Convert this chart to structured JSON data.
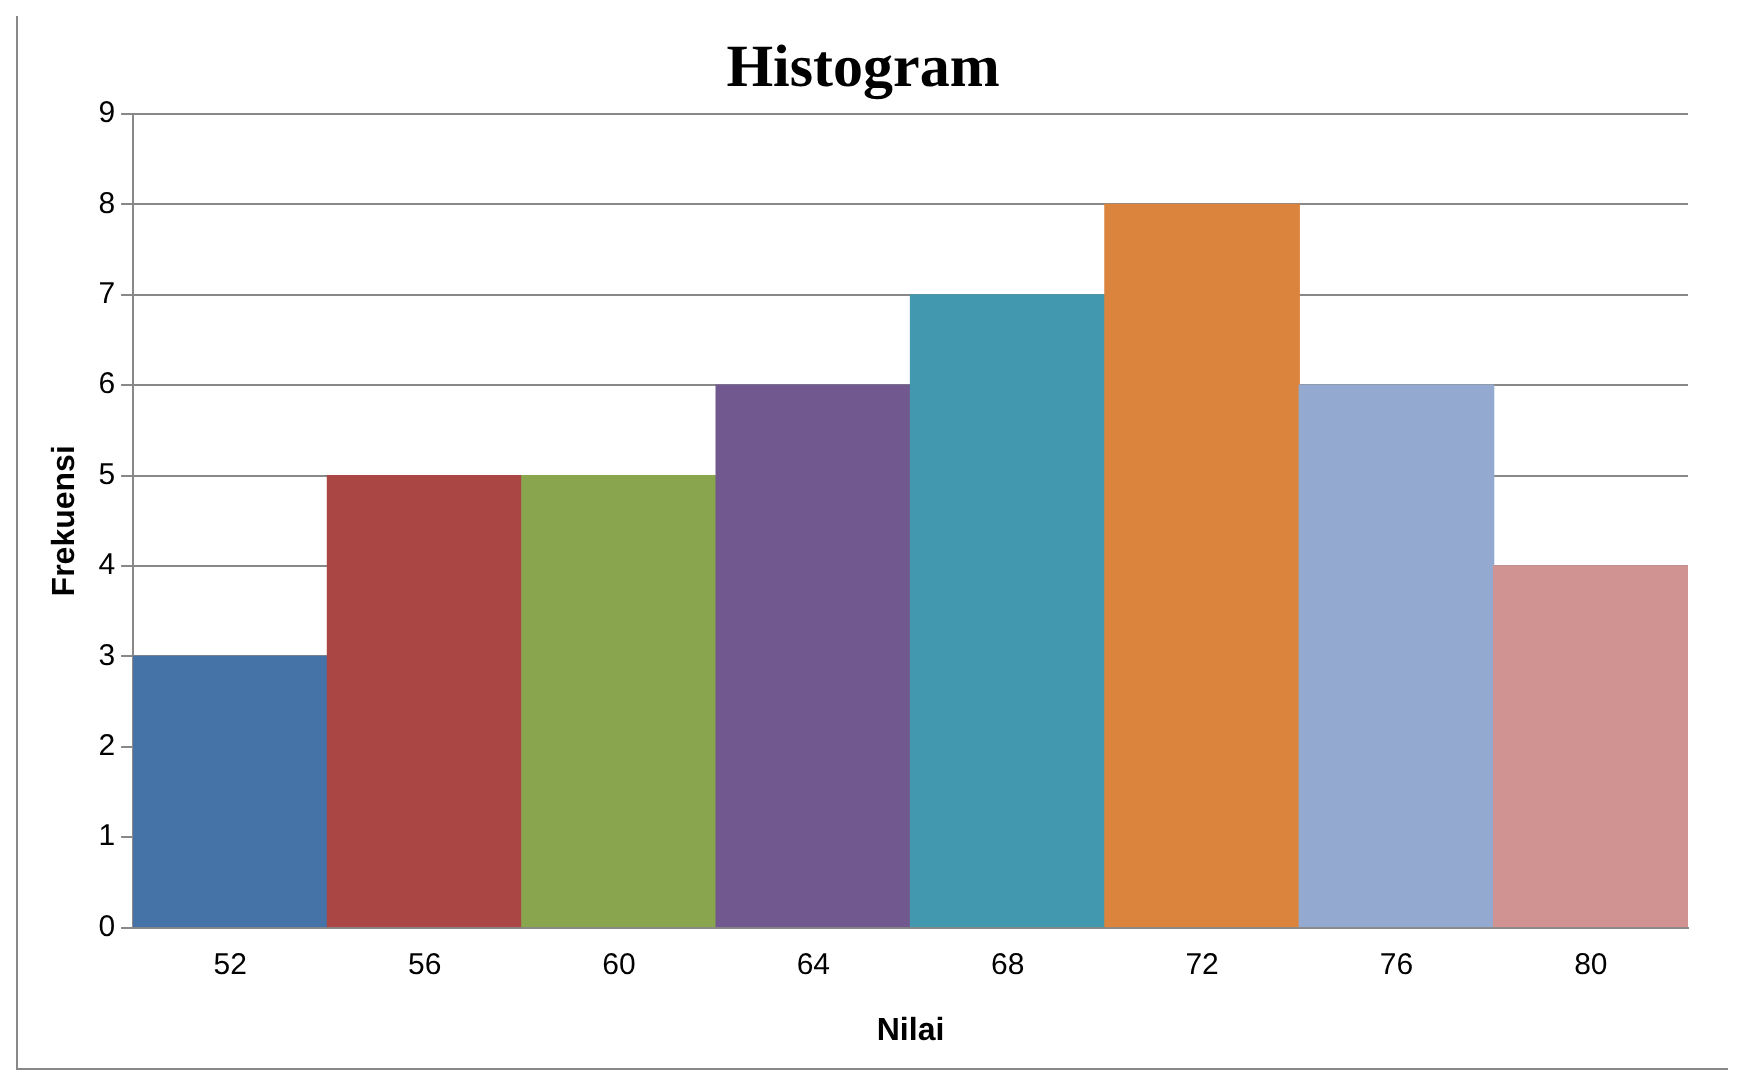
{
  "chart_data": {
    "type": "bar",
    "title": "Histogram",
    "xlabel": "Nilai",
    "ylabel": "Frekuensi",
    "categories": [
      "52",
      "56",
      "60",
      "64",
      "68",
      "72",
      "76",
      "80"
    ],
    "values": [
      3,
      5,
      5,
      6,
      7,
      8,
      6,
      4
    ],
    "colors": [
      "#4572a7",
      "#aa4643",
      "#89a54e",
      "#71588f",
      "#4198af",
      "#db843d",
      "#93a9cf",
      "#d19392"
    ],
    "ylim": [
      0,
      9
    ],
    "yticks": [
      0,
      1,
      2,
      3,
      4,
      5,
      6,
      7,
      8,
      9
    ],
    "grid": "y",
    "legend": false
  }
}
